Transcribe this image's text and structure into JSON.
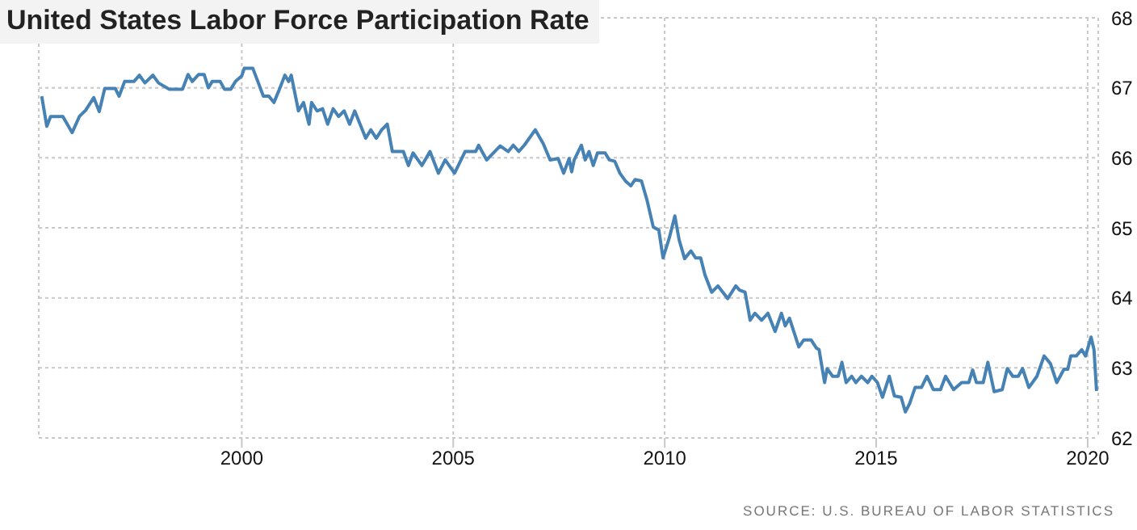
{
  "chart_data": {
    "type": "line",
    "title": "United States Labor Force Participation Rate",
    "annotations": [
      "SOURCE: U.S. BUREAU OF LABOR STATISTICS"
    ],
    "x": [
      1995.27,
      1995.39,
      1995.48,
      1995.77,
      1995.99,
      1996.16,
      1996.31,
      1996.5,
      1996.63,
      1996.76,
      1997.01,
      1997.1,
      1997.23,
      1997.45,
      1997.58,
      1997.71,
      1997.9,
      1998.03,
      1998.28,
      1998.6,
      1998.73,
      1998.83,
      1998.98,
      1999.11,
      1999.21,
      1999.3,
      1999.49,
      1999.59,
      1999.74,
      1999.85,
      2000,
      2000.06,
      2000.26,
      2000.38,
      2000.51,
      2000.64,
      2000.76,
      2000.89,
      2001.02,
      2001.11,
      2001.17,
      2001.34,
      2001.46,
      2001.59,
      2001.65,
      2001.78,
      2001.91,
      2002.03,
      2002.16,
      2002.29,
      2002.42,
      2002.55,
      2002.67,
      2002.93,
      2003.05,
      2003.18,
      2003.31,
      2003.44,
      2003.56,
      2003.82,
      2003.94,
      2004.05,
      2004.26,
      2004.45,
      2004.65,
      2004.81,
      2005.03,
      2005.28,
      2005.53,
      2005.6,
      2005.79,
      2006.11,
      2006.3,
      2006.42,
      2006.55,
      2006.68,
      2006.94,
      2007.13,
      2007.29,
      2007.48,
      2007.61,
      2007.74,
      2007.8,
      2007.86,
      2008.03,
      2008.12,
      2008.21,
      2008.31,
      2008.41,
      2008.59,
      2008.69,
      2008.82,
      2008.94,
      2009.07,
      2009.2,
      2009.3,
      2009.45,
      2009.58,
      2009.73,
      2009.86,
      2009.96,
      2010.11,
      2010.24,
      2010.34,
      2010.47,
      2010.62,
      2010.73,
      2010.85,
      2010.95,
      2011.11,
      2011.26,
      2011.49,
      2011.68,
      2011.77,
      2011.9,
      2012.02,
      2012.13,
      2012.29,
      2012.44,
      2012.61,
      2012.76,
      2012.85,
      2012.95,
      2013.17,
      2013.29,
      2013.46,
      2013.59,
      2013.65,
      2013.78,
      2013.84,
      2013.97,
      2014.1,
      2014.19,
      2014.29,
      2014.42,
      2014.52,
      2014.65,
      2014.8,
      2014.9,
      2015.03,
      2015.15,
      2015.31,
      2015.43,
      2015.59,
      2015.69,
      2015.79,
      2015.92,
      2016.07,
      2016.2,
      2016.35,
      2016.52,
      2016.64,
      2016.83,
      2017.02,
      2017.19,
      2017.28,
      2017.37,
      2017.53,
      2017.64,
      2017.79,
      2017.98,
      2018.1,
      2018.23,
      2018.36,
      2018.46,
      2018.61,
      2018.8,
      2018.97,
      2019.12,
      2019.27,
      2019.44,
      2019.53,
      2019.6,
      2019.73,
      2019.86,
      2019.95,
      2020.08,
      2020.15,
      2020.21
    ],
    "series": [
      {
        "color": "#4682b4",
        "values": [
          66.88,
          66.45,
          66.59,
          66.59,
          66.36,
          66.59,
          66.68,
          66.86,
          66.66,
          66.99,
          66.99,
          66.88,
          67.09,
          67.09,
          67.18,
          67.07,
          67.18,
          67.07,
          66.98,
          66.98,
          67.19,
          67.09,
          67.19,
          67.19,
          67.0,
          67.09,
          67.09,
          66.98,
          66.98,
          67.09,
          67.17,
          67.28,
          67.28,
          67.09,
          66.88,
          66.88,
          66.79,
          66.98,
          67.18,
          67.09,
          67.18,
          66.67,
          66.79,
          66.48,
          66.79,
          66.67,
          66.7,
          66.48,
          66.7,
          66.59,
          66.67,
          66.48,
          66.67,
          66.28,
          66.4,
          66.28,
          66.4,
          66.48,
          66.09,
          66.09,
          65.89,
          66.07,
          65.89,
          66.09,
          65.78,
          65.97,
          65.78,
          66.09,
          66.09,
          66.18,
          65.97,
          66.17,
          66.09,
          66.18,
          66.09,
          66.18,
          66.4,
          66.2,
          65.97,
          65.99,
          65.78,
          65.99,
          65.8,
          65.97,
          66.18,
          65.97,
          66.09,
          65.89,
          66.07,
          66.07,
          65.97,
          65.95,
          65.78,
          65.67,
          65.6,
          65.69,
          65.67,
          65.4,
          65.01,
          64.97,
          64.57,
          64.86,
          65.17,
          64.83,
          64.56,
          64.67,
          64.57,
          64.57,
          64.33,
          64.08,
          64.17,
          63.99,
          64.17,
          64.11,
          64.08,
          63.68,
          63.78,
          63.68,
          63.78,
          63.52,
          63.78,
          63.6,
          63.71,
          63.3,
          63.4,
          63.4,
          63.28,
          63.26,
          62.79,
          62.99,
          62.88,
          62.88,
          63.08,
          62.79,
          62.88,
          62.79,
          62.88,
          62.79,
          62.88,
          62.79,
          62.58,
          62.88,
          62.6,
          62.58,
          62.37,
          62.49,
          62.72,
          62.72,
          62.88,
          62.69,
          62.69,
          62.88,
          62.69,
          62.79,
          62.79,
          62.97,
          62.79,
          62.79,
          63.08,
          62.66,
          62.69,
          62.99,
          62.88,
          62.88,
          62.99,
          62.72,
          62.88,
          63.17,
          63.06,
          62.79,
          62.98,
          62.98,
          63.17,
          63.17,
          63.26,
          63.17,
          63.44,
          63.26,
          62.67
        ]
      }
    ],
    "xlim": [
      1995.2,
      2020.25
    ],
    "xticks": [
      2000,
      2005,
      2010,
      2015,
      2020
    ],
    "ylim": [
      62,
      68
    ],
    "yticks": [
      62,
      63,
      64,
      65,
      66,
      67,
      68
    ],
    "grid": true,
    "legend": false,
    "marker": "none",
    "line_style": "solid"
  }
}
